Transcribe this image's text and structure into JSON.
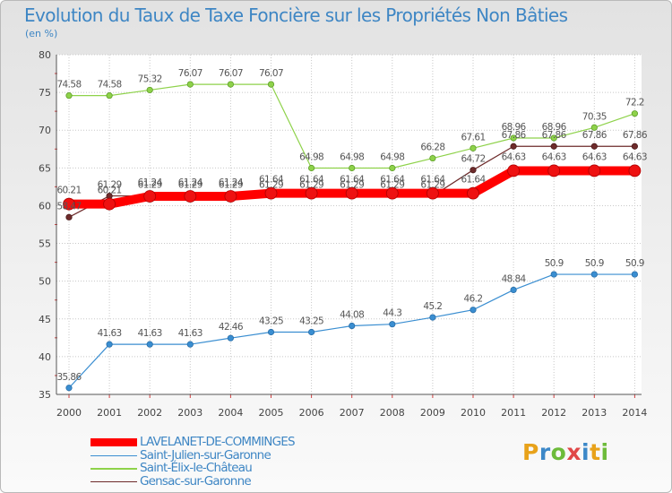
{
  "chart_data": {
    "type": "line",
    "title": "Evolution du Taux de Taxe Foncière sur les Propriétés Non Bâties",
    "ylabel": "(en %)",
    "xlabel": "",
    "ylim": [
      35,
      80
    ],
    "yticks": [
      "35",
      "40",
      "45",
      "50",
      "55",
      "60",
      "65",
      "70",
      "75",
      "80"
    ],
    "categories": [
      "2000",
      "2001",
      "2002",
      "2003",
      "2004",
      "2005",
      "2006",
      "2007",
      "2008",
      "2009",
      "2010",
      "2011",
      "2012",
      "2013",
      "2014"
    ],
    "series": [
      {
        "name": "LAVELANET-DE-COMMINGES",
        "color": "#ff0000",
        "values": [
          60.21,
          60.21,
          61.24,
          61.24,
          61.24,
          61.64,
          61.64,
          61.64,
          61.64,
          61.64,
          61.64,
          64.63,
          64.63,
          64.63,
          64.63
        ],
        "labels": [
          "60.21",
          "60.21",
          "61.24",
          "61.24",
          "61.24",
          "61.64",
          "61.64",
          "61.64",
          "61.64",
          "61.64",
          "61.64",
          "64.63",
          "64.63",
          "64.63",
          "64.63"
        ]
      },
      {
        "name": "Saint-Julien-sur-Garonne",
        "color": "#3a8ed1",
        "values": [
          35.86,
          41.63,
          41.63,
          41.63,
          42.46,
          43.25,
          43.25,
          44.08,
          44.3,
          45.2,
          46.2,
          48.84,
          50.9,
          50.9,
          50.9
        ],
        "labels": [
          "35.86",
          "41.63",
          "41.63",
          "41.63",
          "42.46",
          "43.25",
          "43.25",
          "44.08",
          "44.3",
          "45.2",
          "46.2",
          "48.84",
          "50.9",
          "50.9",
          "50.9"
        ]
      },
      {
        "name": "Saint-Élix-le-Château",
        "color": "#8ed24a",
        "values": [
          74.58,
          74.58,
          75.32,
          76.07,
          76.07,
          76.07,
          64.98,
          64.98,
          64.98,
          66.28,
          67.61,
          68.96,
          68.96,
          70.35,
          72.2
        ],
        "labels": [
          "74.58",
          "74.58",
          "75.32",
          "76.07",
          "76.07",
          "76.07",
          "64.98",
          "64.98",
          "64.98",
          "66.28",
          "67.61",
          "68.96",
          "68.96",
          "70.35",
          "72.2"
        ]
      },
      {
        "name": "Gensac-sur-Garonne",
        "color": "#6e2b2b",
        "values": [
          58.47,
          61.29,
          61.29,
          61.29,
          61.29,
          61.29,
          61.29,
          61.29,
          61.29,
          61.29,
          64.72,
          67.86,
          67.86,
          67.86,
          67.86
        ],
        "labels": [
          "58.47",
          "61.29",
          "61.29",
          "61.29",
          "61.29",
          "61.29",
          "61.29",
          "61.29",
          "61.29",
          "61.29",
          "64.72",
          "67.86",
          "67.86",
          "67.86",
          "67.86"
        ]
      }
    ],
    "legend": "bottom-left"
  },
  "logo": {
    "letters": [
      "P",
      "r",
      "o",
      "x",
      "i",
      "t",
      "i"
    ],
    "colors": [
      "#e8a21a",
      "#3c88c8",
      "#6dbb3a",
      "#e04848",
      "#3c88c8",
      "#e8a21a",
      "#6dbb3a"
    ]
  }
}
